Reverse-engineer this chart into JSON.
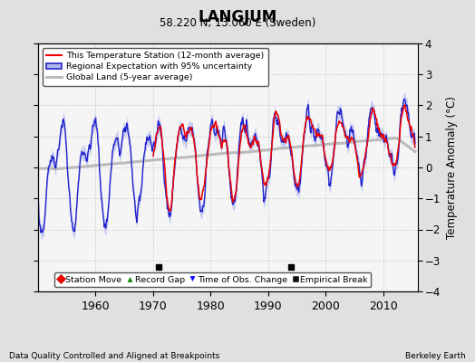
{
  "title": "LANGJUM",
  "subtitle": "58.220 N, 13.060 E (Sweden)",
  "ylabel": "Temperature Anomaly (°C)",
  "footer_left": "Data Quality Controlled and Aligned at Breakpoints",
  "footer_right": "Berkeley Earth",
  "xlim": [
    1950,
    2016
  ],
  "ylim": [
    -4,
    4
  ],
  "yticks": [
    -4,
    -3,
    -2,
    -1,
    0,
    1,
    2,
    3,
    4
  ],
  "xticks": [
    1960,
    1970,
    1980,
    1990,
    2000,
    2010
  ],
  "empirical_breaks": [
    1971,
    1994
  ],
  "background_color": "#e0e0e0",
  "plot_bg_color": "#f5f5f5",
  "legend_items": [
    {
      "label": "This Temperature Station (12-month average)",
      "color": "#ff0000",
      "lw": 1.5
    },
    {
      "label": "Regional Expectation with 95% uncertainty",
      "color": "#3333cc",
      "lw": 1.5
    },
    {
      "label": "Global Land (5-year average)",
      "color": "#aaaaaa",
      "lw": 2.0
    }
  ],
  "marker_legend": [
    {
      "label": "Station Move",
      "color": "#ff0000",
      "marker": "D"
    },
    {
      "label": "Record Gap",
      "color": "#008800",
      "marker": "^"
    },
    {
      "label": "Time of Obs. Change",
      "color": "#0000ff",
      "marker": "v"
    },
    {
      "label": "Empirical Break",
      "color": "#000000",
      "marker": "s"
    }
  ],
  "seed": 42,
  "station_start": 1970
}
